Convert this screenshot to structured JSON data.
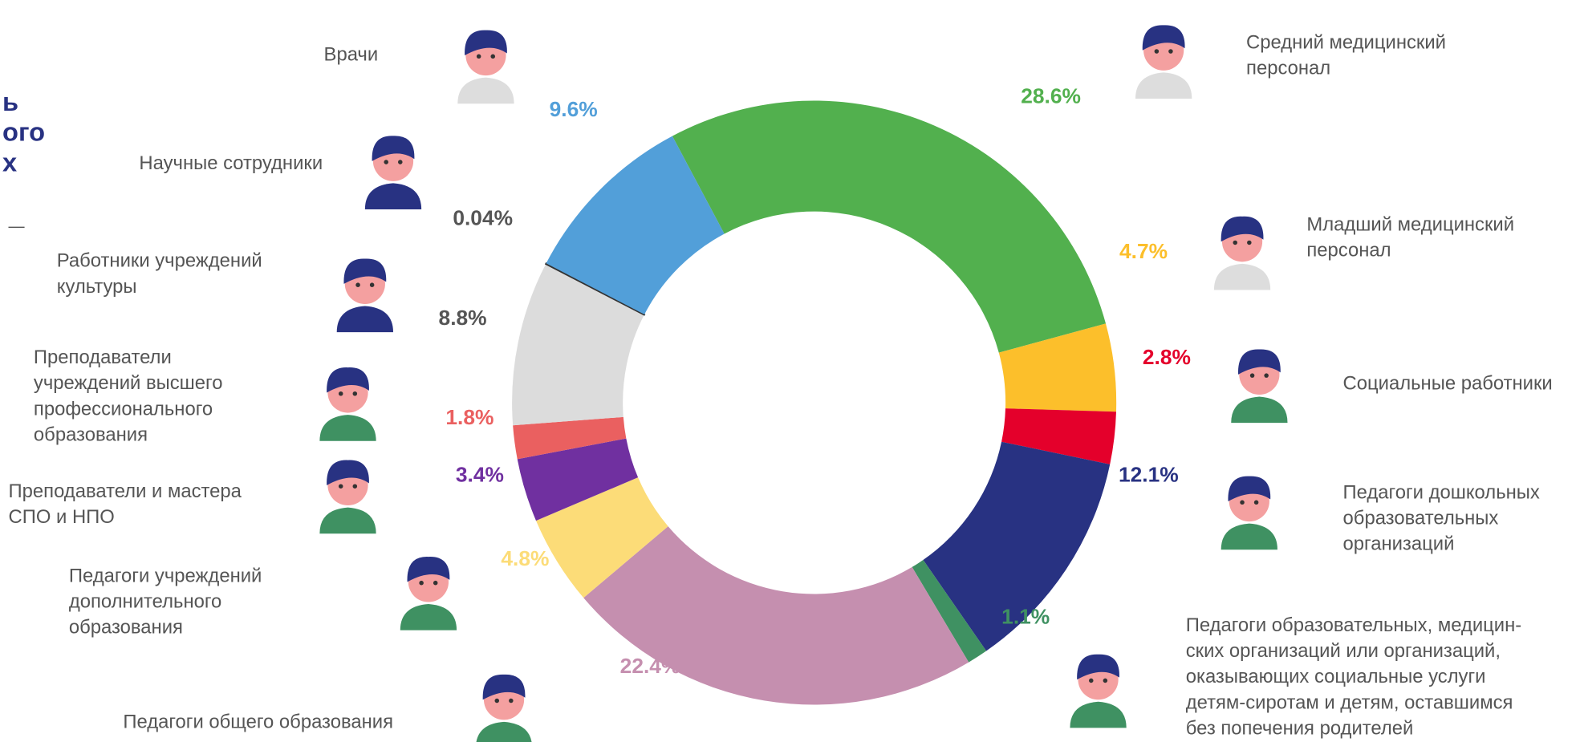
{
  "chart_data": {
    "type": "donut",
    "title_fragments": [
      "ь",
      "ого",
      "х",
      "—"
    ],
    "series": [
      {
        "name": [
          "Средний медицинский",
          "персонал"
        ],
        "value": 28.6,
        "value_label": "28.6%",
        "color": "#52b04e"
      },
      {
        "name": [
          "Младший медицинский",
          "персонал"
        ],
        "value": 4.7,
        "value_label": "4.7%",
        "color": "#fcbf2b"
      },
      {
        "name": [
          "Социальные работники"
        ],
        "value": 2.8,
        "value_label": "2.8%",
        "color": "#e4002b"
      },
      {
        "name": [
          "Педагоги дошкольных",
          "образовательных",
          "организаций"
        ],
        "value": 12.1,
        "value_label": "12.1%",
        "color": "#283282"
      },
      {
        "name": [
          "Педагоги образовательных, медицин-",
          "ских организаций или организаций,",
          "оказывающих социальные услуги",
          "детям-сиротам и детям, оставшимся",
          "без попечения родителей"
        ],
        "value": 1.1,
        "value_label": "1.1%",
        "color": "#3f9162"
      },
      {
        "name": [
          "Педагоги общего образования"
        ],
        "value": 22.4,
        "value_label": "22.4%",
        "color": "#c58faf"
      },
      {
        "name": [
          "Педагоги учреждений",
          "дополнительного",
          "образования"
        ],
        "value": 4.8,
        "value_label": "4.8%",
        "color": "#fcdc78"
      },
      {
        "name": [
          "Преподаватели и мастера",
          "СПО и НПО"
        ],
        "value": 3.4,
        "value_label": "3.4%",
        "color": "#7030a0"
      },
      {
        "name": [
          "Преподаватели",
          "учреждений высшего",
          "профессионального",
          "образования"
        ],
        "value": 1.8,
        "value_label": "1.8%",
        "color": "#ea6060"
      },
      {
        "name": [
          "Работники учреждений",
          "культуры"
        ],
        "value": 8.8,
        "value_label": "8.8%",
        "color": "#dcdcdc",
        "label_color": "#555555"
      },
      {
        "name": [
          "Научные сотрудники"
        ],
        "value": 0.04,
        "value_label": "0.04%",
        "color": "#333333",
        "label_color": "#555555"
      },
      {
        "name": [
          "Врачи"
        ],
        "value": 9.6,
        "value_label": "9.6%",
        "color": "#529fd9"
      }
    ]
  }
}
